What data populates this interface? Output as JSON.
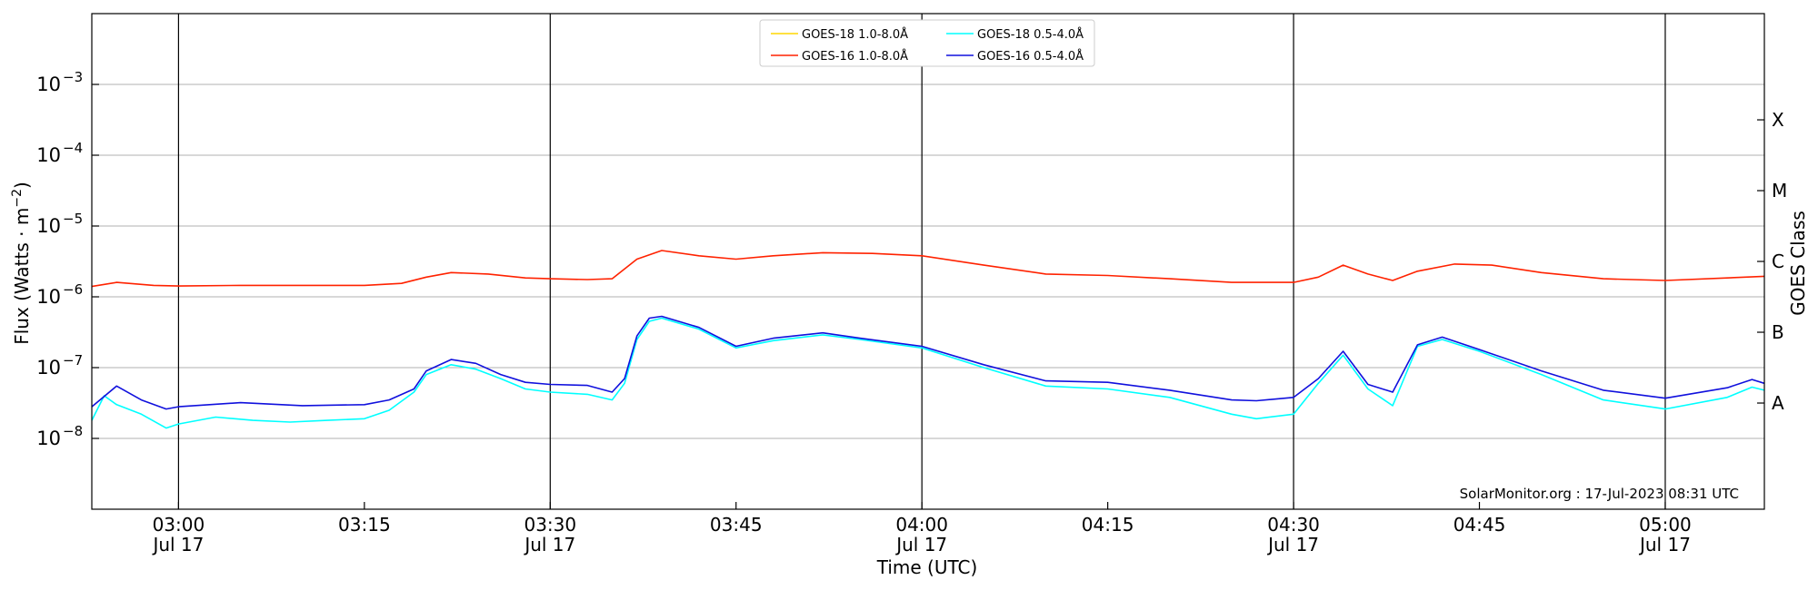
{
  "chart_data": {
    "type": "line",
    "xlabel": "Time (UTC)",
    "ylabel": "Flux (Watts · m⁻²)",
    "ylabel_right": "GOES Class",
    "ylim": [
      1e-09,
      0.01
    ],
    "yscale": "log",
    "xlim": [
      "2023-07-17 02:53",
      "2023-07-17 05:08"
    ],
    "grid": "horizontal",
    "legend_position": "top-center",
    "y_ticks": [
      {
        "value": 1e-08,
        "label": "10",
        "exp": "−8"
      },
      {
        "value": 1e-07,
        "label": "10",
        "exp": "−7"
      },
      {
        "value": 1e-06,
        "label": "10",
        "exp": "−6"
      },
      {
        "value": 1e-05,
        "label": "10",
        "exp": "−5"
      },
      {
        "value": 0.0001,
        "label": "10",
        "exp": "−4"
      },
      {
        "value": 0.001,
        "label": "10",
        "exp": "−3"
      }
    ],
    "x_ticks": [
      {
        "time": "2023-07-17 03:00",
        "label": "03:00",
        "date": "Jul 17"
      },
      {
        "time": "2023-07-17 03:15",
        "label": "03:15",
        "date": ""
      },
      {
        "time": "2023-07-17 03:30",
        "label": "03:30",
        "date": "Jul 17"
      },
      {
        "time": "2023-07-17 03:45",
        "label": "03:45",
        "date": ""
      },
      {
        "time": "2023-07-17 04:00",
        "label": "04:00",
        "date": "Jul 17"
      },
      {
        "time": "2023-07-17 04:15",
        "label": "04:15",
        "date": ""
      },
      {
        "time": "2023-07-17 04:30",
        "label": "04:30",
        "date": "Jul 17"
      },
      {
        "time": "2023-07-17 04:45",
        "label": "04:45",
        "date": ""
      },
      {
        "time": "2023-07-17 05:00",
        "label": "05:00",
        "date": "Jul 17"
      }
    ],
    "vertical_lines": [
      "2023-07-17 03:00",
      "2023-07-17 03:30",
      "2023-07-17 04:00",
      "2023-07-17 04:30",
      "2023-07-17 05:00"
    ],
    "goes_classes": [
      {
        "label": "A",
        "value": 3.16e-08
      },
      {
        "label": "B",
        "value": 3.16e-07
      },
      {
        "label": "C",
        "value": 3.16e-06
      },
      {
        "label": "M",
        "value": 3.16e-05
      },
      {
        "label": "X",
        "value": 0.000316
      }
    ],
    "legend": [
      {
        "name": "GOES-18 1.0-8.0Å",
        "color": "#ffd700"
      },
      {
        "name": "GOES-18 0.5-4.0Å",
        "color": "#00ffff"
      },
      {
        "name": "GOES-16 1.0-8.0Å",
        "color": "#ff2200"
      },
      {
        "name": "GOES-16 0.5-4.0Å",
        "color": "#1010dd"
      }
    ],
    "series": [
      {
        "name": "GOES-16 1.0-8.0Å",
        "color": "#ff2200",
        "points": [
          [
            "2023-07-17 02:53",
            1.4e-06
          ],
          [
            "2023-07-17 02:55",
            1.6e-06
          ],
          [
            "2023-07-17 02:58",
            1.45e-06
          ],
          [
            "2023-07-17 03:00",
            1.42e-06
          ],
          [
            "2023-07-17 03:05",
            1.45e-06
          ],
          [
            "2023-07-17 03:10",
            1.45e-06
          ],
          [
            "2023-07-17 03:15",
            1.45e-06
          ],
          [
            "2023-07-17 03:18",
            1.55e-06
          ],
          [
            "2023-07-17 03:20",
            1.9e-06
          ],
          [
            "2023-07-17 03:22",
            2.2e-06
          ],
          [
            "2023-07-17 03:25",
            2.1e-06
          ],
          [
            "2023-07-17 03:28",
            1.85e-06
          ],
          [
            "2023-07-17 03:30",
            1.8e-06
          ],
          [
            "2023-07-17 03:33",
            1.75e-06
          ],
          [
            "2023-07-17 03:35",
            1.8e-06
          ],
          [
            "2023-07-17 03:37",
            3.4e-06
          ],
          [
            "2023-07-17 03:39",
            4.5e-06
          ],
          [
            "2023-07-17 03:42",
            3.8e-06
          ],
          [
            "2023-07-17 03:45",
            3.4e-06
          ],
          [
            "2023-07-17 03:48",
            3.8e-06
          ],
          [
            "2023-07-17 03:52",
            4.2e-06
          ],
          [
            "2023-07-17 03:56",
            4.1e-06
          ],
          [
            "2023-07-17 04:00",
            3.8e-06
          ],
          [
            "2023-07-17 04:05",
            2.8e-06
          ],
          [
            "2023-07-17 04:10",
            2.1e-06
          ],
          [
            "2023-07-17 04:15",
            2e-06
          ],
          [
            "2023-07-17 04:20",
            1.8e-06
          ],
          [
            "2023-07-17 04:25",
            1.6e-06
          ],
          [
            "2023-07-17 04:30",
            1.6e-06
          ],
          [
            "2023-07-17 04:32",
            1.9e-06
          ],
          [
            "2023-07-17 04:34",
            2.8e-06
          ],
          [
            "2023-07-17 04:36",
            2.1e-06
          ],
          [
            "2023-07-17 04:38",
            1.7e-06
          ],
          [
            "2023-07-17 04:40",
            2.3e-06
          ],
          [
            "2023-07-17 04:43",
            2.9e-06
          ],
          [
            "2023-07-17 04:46",
            2.8e-06
          ],
          [
            "2023-07-17 04:50",
            2.2e-06
          ],
          [
            "2023-07-17 04:55",
            1.8e-06
          ],
          [
            "2023-07-17 05:00",
            1.7e-06
          ],
          [
            "2023-07-17 05:05",
            1.85e-06
          ],
          [
            "2023-07-17 05:08",
            1.95e-06
          ]
        ]
      },
      {
        "name": "GOES-18 0.5-4.0Å",
        "color": "#00ffff",
        "points": [
          [
            "2023-07-17 02:53",
            1.8e-08
          ],
          [
            "2023-07-17 02:54",
            4e-08
          ],
          [
            "2023-07-17 02:55",
            3e-08
          ],
          [
            "2023-07-17 02:57",
            2.2e-08
          ],
          [
            "2023-07-17 02:59",
            1.4e-08
          ],
          [
            "2023-07-17 03:00",
            1.6e-08
          ],
          [
            "2023-07-17 03:03",
            2e-08
          ],
          [
            "2023-07-17 03:06",
            1.8e-08
          ],
          [
            "2023-07-17 03:09",
            1.7e-08
          ],
          [
            "2023-07-17 03:12",
            1.8e-08
          ],
          [
            "2023-07-17 03:15",
            1.9e-08
          ],
          [
            "2023-07-17 03:17",
            2.5e-08
          ],
          [
            "2023-07-17 03:19",
            4.5e-08
          ],
          [
            "2023-07-17 03:20",
            8e-08
          ],
          [
            "2023-07-17 03:22",
            1.1e-07
          ],
          [
            "2023-07-17 03:24",
            9.5e-08
          ],
          [
            "2023-07-17 03:26",
            7e-08
          ],
          [
            "2023-07-17 03:28",
            5e-08
          ],
          [
            "2023-07-17 03:30",
            4.5e-08
          ],
          [
            "2023-07-17 03:33",
            4.2e-08
          ],
          [
            "2023-07-17 03:35",
            3.5e-08
          ],
          [
            "2023-07-17 03:36",
            6e-08
          ],
          [
            "2023-07-17 03:37",
            2.5e-07
          ],
          [
            "2023-07-17 03:38",
            4.5e-07
          ],
          [
            "2023-07-17 03:39",
            5e-07
          ],
          [
            "2023-07-17 03:42",
            3.5e-07
          ],
          [
            "2023-07-17 03:45",
            1.9e-07
          ],
          [
            "2023-07-17 03:48",
            2.4e-07
          ],
          [
            "2023-07-17 03:52",
            2.9e-07
          ],
          [
            "2023-07-17 03:55",
            2.5e-07
          ],
          [
            "2023-07-17 04:00",
            1.9e-07
          ],
          [
            "2023-07-17 04:05",
            1e-07
          ],
          [
            "2023-07-17 04:10",
            5.5e-08
          ],
          [
            "2023-07-17 04:15",
            5e-08
          ],
          [
            "2023-07-17 04:20",
            3.8e-08
          ],
          [
            "2023-07-17 04:25",
            2.2e-08
          ],
          [
            "2023-07-17 04:27",
            1.9e-08
          ],
          [
            "2023-07-17 04:30",
            2.2e-08
          ],
          [
            "2023-07-17 04:32",
            6e-08
          ],
          [
            "2023-07-17 04:34",
            1.5e-07
          ],
          [
            "2023-07-17 04:36",
            5e-08
          ],
          [
            "2023-07-17 04:38",
            2.9e-08
          ],
          [
            "2023-07-17 04:40",
            2e-07
          ],
          [
            "2023-07-17 04:42",
            2.5e-07
          ],
          [
            "2023-07-17 04:45",
            1.7e-07
          ],
          [
            "2023-07-17 04:50",
            8e-08
          ],
          [
            "2023-07-17 04:55",
            3.5e-08
          ],
          [
            "2023-07-17 05:00",
            2.6e-08
          ],
          [
            "2023-07-17 05:05",
            3.8e-08
          ],
          [
            "2023-07-17 05:07",
            5.3e-08
          ],
          [
            "2023-07-17 05:08",
            4.8e-08
          ]
        ]
      },
      {
        "name": "GOES-16 0.5-4.0Å",
        "color": "#1010dd",
        "points": [
          [
            "2023-07-17 02:53",
            2.8e-08
          ],
          [
            "2023-07-17 02:55",
            5.5e-08
          ],
          [
            "2023-07-17 02:57",
            3.5e-08
          ],
          [
            "2023-07-17 02:59",
            2.6e-08
          ],
          [
            "2023-07-17 03:00",
            2.8e-08
          ],
          [
            "2023-07-17 03:05",
            3.2e-08
          ],
          [
            "2023-07-17 03:10",
            2.9e-08
          ],
          [
            "2023-07-17 03:15",
            3e-08
          ],
          [
            "2023-07-17 03:17",
            3.5e-08
          ],
          [
            "2023-07-17 03:19",
            5e-08
          ],
          [
            "2023-07-17 03:20",
            9e-08
          ],
          [
            "2023-07-17 03:22",
            1.3e-07
          ],
          [
            "2023-07-17 03:24",
            1.15e-07
          ],
          [
            "2023-07-17 03:26",
            8e-08
          ],
          [
            "2023-07-17 03:28",
            6.2e-08
          ],
          [
            "2023-07-17 03:30",
            5.8e-08
          ],
          [
            "2023-07-17 03:33",
            5.6e-08
          ],
          [
            "2023-07-17 03:35",
            4.5e-08
          ],
          [
            "2023-07-17 03:36",
            7e-08
          ],
          [
            "2023-07-17 03:37",
            2.8e-07
          ],
          [
            "2023-07-17 03:38",
            5e-07
          ],
          [
            "2023-07-17 03:39",
            5.3e-07
          ],
          [
            "2023-07-17 03:42",
            3.7e-07
          ],
          [
            "2023-07-17 03:45",
            2e-07
          ],
          [
            "2023-07-17 03:48",
            2.6e-07
          ],
          [
            "2023-07-17 03:52",
            3.1e-07
          ],
          [
            "2023-07-17 03:55",
            2.6e-07
          ],
          [
            "2023-07-17 04:00",
            2e-07
          ],
          [
            "2023-07-17 04:05",
            1.1e-07
          ],
          [
            "2023-07-17 04:10",
            6.5e-08
          ],
          [
            "2023-07-17 04:15",
            6.2e-08
          ],
          [
            "2023-07-17 04:20",
            4.8e-08
          ],
          [
            "2023-07-17 04:25",
            3.5e-08
          ],
          [
            "2023-07-17 04:27",
            3.4e-08
          ],
          [
            "2023-07-17 04:30",
            3.8e-08
          ],
          [
            "2023-07-17 04:32",
            7e-08
          ],
          [
            "2023-07-17 04:34",
            1.7e-07
          ],
          [
            "2023-07-17 04:36",
            5.8e-08
          ],
          [
            "2023-07-17 04:38",
            4.5e-08
          ],
          [
            "2023-07-17 04:40",
            2.1e-07
          ],
          [
            "2023-07-17 04:42",
            2.7e-07
          ],
          [
            "2023-07-17 04:45",
            1.8e-07
          ],
          [
            "2023-07-17 04:50",
            9e-08
          ],
          [
            "2023-07-17 04:55",
            4.8e-08
          ],
          [
            "2023-07-17 05:00",
            3.7e-08
          ],
          [
            "2023-07-17 05:05",
            5.2e-08
          ],
          [
            "2023-07-17 05:07",
            6.8e-08
          ],
          [
            "2023-07-17 05:08",
            6e-08
          ]
        ]
      }
    ],
    "annotation": "SolarMonitor.org : 17-Jul-2023 08:31 UTC"
  }
}
